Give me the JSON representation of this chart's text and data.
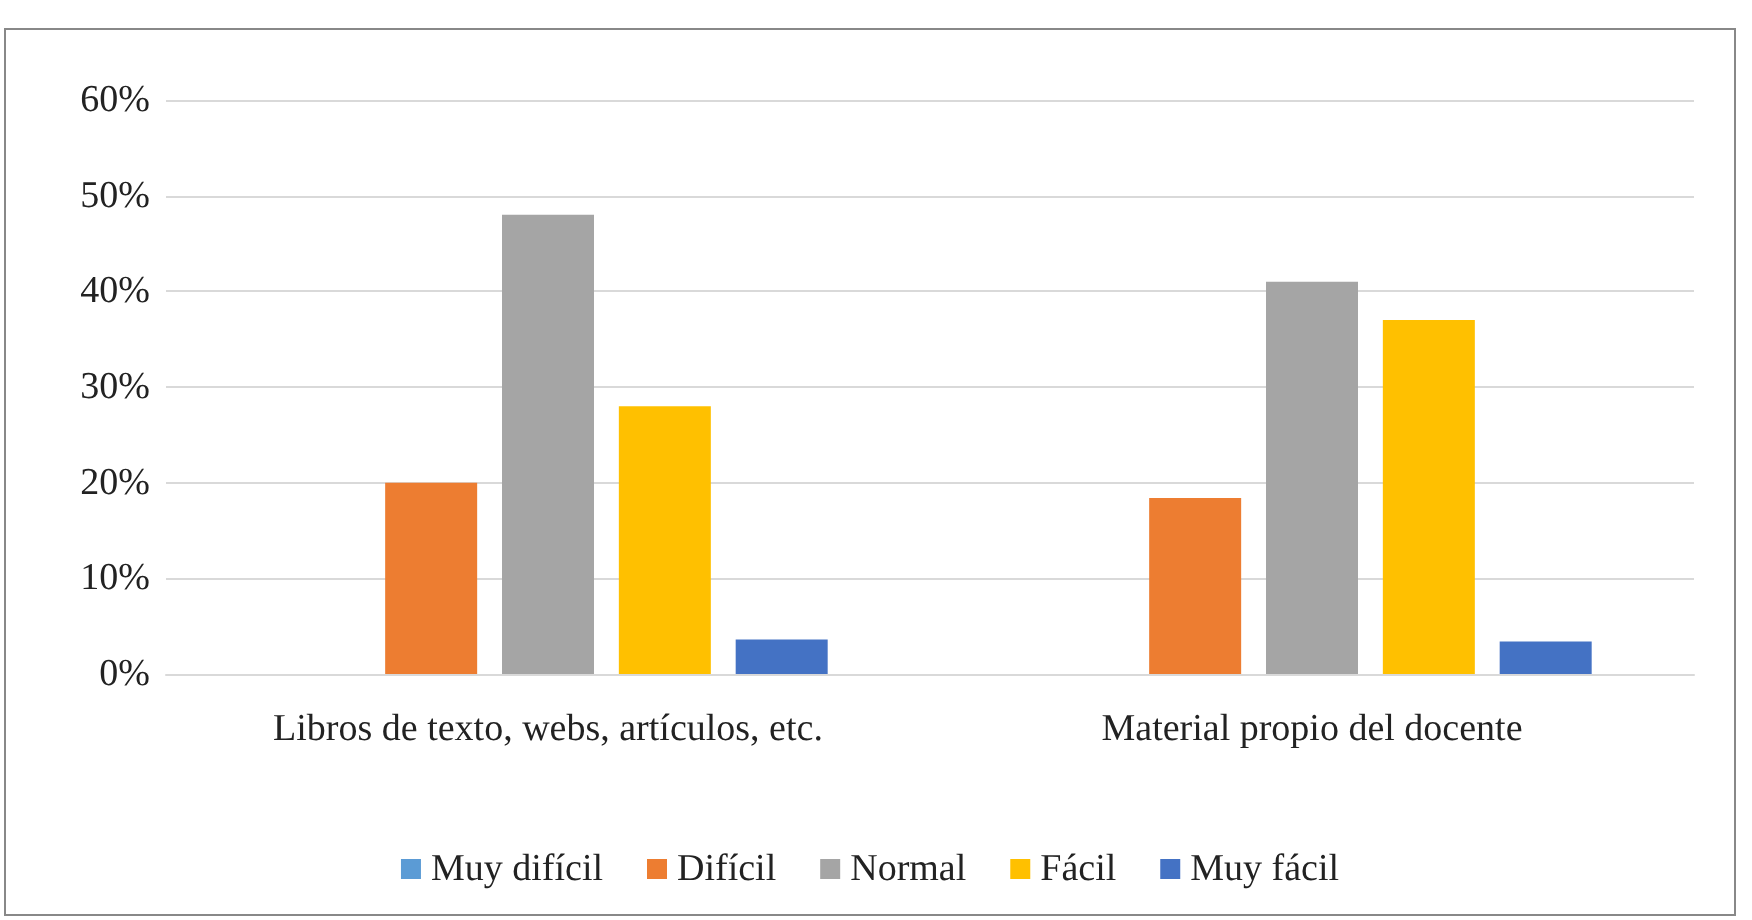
{
  "chart_data": {
    "type": "bar",
    "categories": [
      "Libros de texto, webs, artículos, etc.",
      "Material propio del docente"
    ],
    "series": [
      {
        "name": "Muy difícil",
        "color": "#5b9bd5",
        "values": [
          0,
          0
        ]
      },
      {
        "name": "Difícil",
        "color": "#ed7d31",
        "values": [
          20,
          18.4
        ]
      },
      {
        "name": "Normal",
        "color": "#a5a5a5",
        "values": [
          48,
          41
        ]
      },
      {
        "name": "Fácil",
        "color": "#ffc000",
        "values": [
          28,
          37
        ]
      },
      {
        "name": "Muy fácil",
        "color": "#4472c4",
        "values": [
          3.6,
          3.4
        ]
      }
    ],
    "ylim": [
      0,
      60
    ],
    "yticks": [
      {
        "value": 0,
        "label": "0%"
      },
      {
        "value": 10,
        "label": "10%"
      },
      {
        "value": 20,
        "label": "20%"
      },
      {
        "value": 30,
        "label": "30%"
      },
      {
        "value": 40,
        "label": "40%"
      },
      {
        "value": 50,
        "label": "50%"
      },
      {
        "value": 60,
        "label": "60%"
      }
    ],
    "grid": "y",
    "legend": "bottom"
  }
}
